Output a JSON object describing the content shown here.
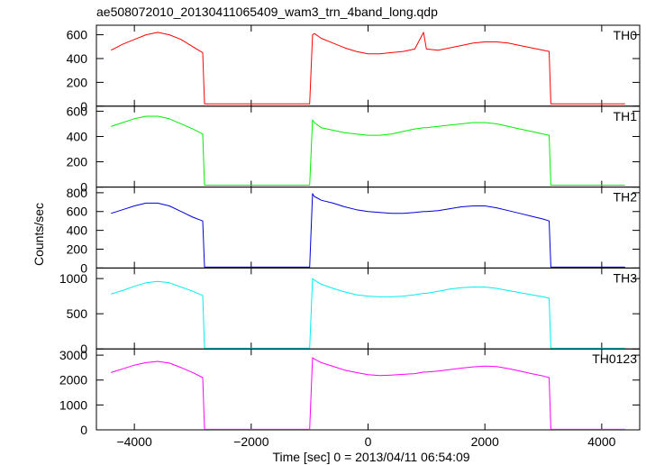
{
  "chart_data": {
    "type": "line",
    "title": "ae508072010_20130411065409_wam3_trn_4band_long.qdp",
    "xlabel": "Time [sec] 0 = 2013/04/11 06:54:09",
    "ylabel": "Counts/sec",
    "xlim": [
      -4650,
      4650
    ],
    "xticks": [
      -4000,
      -2000,
      0,
      2000,
      4000
    ],
    "xtick_labels": [
      "−4000",
      "−2000",
      "0",
      "2000",
      "4000"
    ],
    "x": [
      -4400,
      -4200,
      -4000,
      -3800,
      -3600,
      -3400,
      -3200,
      -3000,
      -2830,
      -2800,
      -2000,
      -1000,
      -950,
      -920,
      -800,
      -600,
      -400,
      -200,
      0,
      200,
      400,
      600,
      800,
      950,
      1000,
      1200,
      1400,
      1600,
      1800,
      2000,
      2200,
      2400,
      2600,
      2800,
      3000,
      3100,
      3130,
      4400
    ],
    "panels": [
      {
        "name": "TH0",
        "color": "#ff0000",
        "ylim": [
          0,
          680
        ],
        "yticks": [
          0,
          200,
          400,
          600
        ],
        "ytick_labels": [
          "0",
          "200",
          "400",
          "600"
        ],
        "values": [
          470,
          520,
          560,
          600,
          620,
          600,
          560,
          500,
          450,
          20,
          20,
          20,
          600,
          610,
          570,
          530,
          490,
          460,
          440,
          440,
          450,
          460,
          480,
          620,
          480,
          470,
          490,
          510,
          530,
          540,
          540,
          530,
          510,
          490,
          470,
          460,
          20,
          20
        ]
      },
      {
        "name": "TH1",
        "color": "#00ee00",
        "ylim": [
          0,
          640
        ],
        "yticks": [
          0,
          200,
          400,
          600
        ],
        "ytick_labels": [
          "0",
          "200",
          "400",
          "600"
        ],
        "values": [
          480,
          510,
          540,
          560,
          560,
          540,
          500,
          460,
          420,
          15,
          15,
          15,
          530,
          510,
          470,
          450,
          430,
          420,
          410,
          410,
          420,
          440,
          460,
          470,
          470,
          480,
          490,
          500,
          510,
          510,
          500,
          480,
          460,
          440,
          420,
          410,
          15,
          15
        ]
      },
      {
        "name": "TH2",
        "color": "#0000dd",
        "ylim": [
          0,
          860
        ],
        "yticks": [
          0,
          200,
          400,
          600,
          800
        ],
        "ytick_labels": [
          "0",
          "200",
          "400",
          "600",
          "800"
        ],
        "values": [
          580,
          620,
          660,
          690,
          690,
          660,
          600,
          540,
          500,
          10,
          10,
          10,
          790,
          760,
          720,
          690,
          650,
          620,
          600,
          590,
          580,
          580,
          590,
          600,
          600,
          610,
          630,
          650,
          660,
          660,
          640,
          610,
          580,
          550,
          520,
          500,
          10,
          10
        ]
      },
      {
        "name": "TH3",
        "color": "#00eeee",
        "ylim": [
          0,
          1150
        ],
        "yticks": [
          0,
          500,
          1000
        ],
        "ytick_labels": [
          "0",
          "500",
          "1000"
        ],
        "values": [
          780,
          830,
          890,
          940,
          960,
          940,
          880,
          820,
          760,
          10,
          10,
          10,
          1000,
          980,
          920,
          860,
          810,
          770,
          750,
          740,
          740,
          750,
          770,
          790,
          790,
          820,
          850,
          870,
          880,
          880,
          860,
          830,
          800,
          770,
          740,
          720,
          10,
          10
        ]
      },
      {
        "name": "TH0123",
        "color": "#ff00ff",
        "ylim": [
          0,
          3250
        ],
        "yticks": [
          0,
          1000,
          2000,
          3000
        ],
        "ytick_labels": [
          "0",
          "1000",
          "2000",
          "3000"
        ],
        "values": [
          2300,
          2450,
          2600,
          2700,
          2750,
          2680,
          2500,
          2300,
          2100,
          20,
          20,
          20,
          2900,
          2850,
          2700,
          2550,
          2400,
          2300,
          2220,
          2180,
          2200,
          2230,
          2260,
          2320,
          2320,
          2360,
          2420,
          2480,
          2530,
          2560,
          2540,
          2460,
          2360,
          2260,
          2160,
          2100,
          20,
          20
        ]
      }
    ]
  }
}
